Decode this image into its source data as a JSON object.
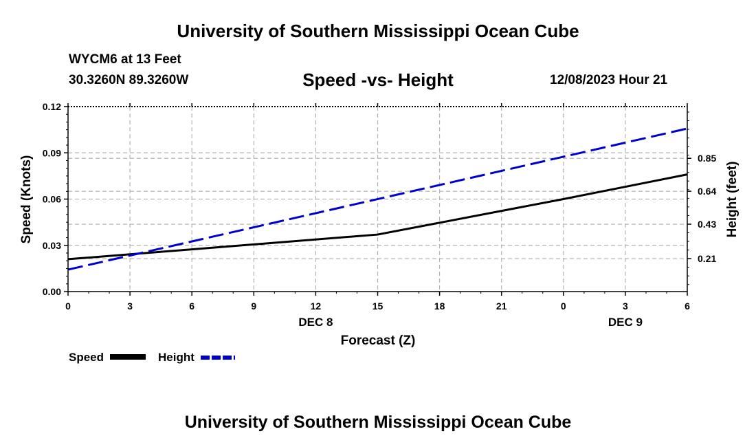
{
  "page": {
    "title_top": "University of Southern Mississippi Ocean Cube",
    "title_bottom": "University of Southern Mississippi Ocean Cube",
    "station_line": "WYCM6 at 13 Feet",
    "coords_line": "30.3260N  89.3260W",
    "timestamp": "12/08/2023 Hour 21"
  },
  "legend": {
    "speed_label": "Speed",
    "height_label": "Height"
  },
  "colors": {
    "speed": "#000000",
    "height": "#0000cc",
    "grid": "#b4b4b4"
  },
  "chart_data": {
    "type": "line",
    "title": "Speed -vs- Height",
    "xlabel": "Forecast (Z)",
    "ylabel": "Speed (Knots)",
    "y2label": "Height (feet)",
    "x": [
      0,
      3,
      6,
      9,
      12,
      15,
      18,
      21,
      24,
      27,
      30
    ],
    "x_tick_labels": [
      "0",
      "3",
      "6",
      "9",
      "12",
      "15",
      "18",
      "21",
      "0",
      "3",
      "6"
    ],
    "date_labels": [
      {
        "x": 12,
        "text": "DEC 8"
      },
      {
        "x": 27,
        "text": "DEC 9"
      }
    ],
    "xlim": [
      0,
      30
    ],
    "ylim": [
      0,
      0.12
    ],
    "y_ticks": [
      0.0,
      0.03,
      0.06,
      0.09,
      0.12
    ],
    "y_tick_labels": [
      "0.00",
      "0.03",
      "0.06",
      "0.09",
      "0.12"
    ],
    "y2lim": [
      0.0,
      1.18
    ],
    "y2_ticks": [
      0.21,
      0.43,
      0.64,
      0.85
    ],
    "y2_tick_labels": [
      "0.21",
      "0.43",
      "0.64",
      "0.85"
    ],
    "grid": true,
    "series": [
      {
        "name": "Speed",
        "axis": "left",
        "style": "solid",
        "x": [
          0,
          15,
          24,
          30
        ],
        "values": [
          0.021,
          0.037,
          0.06,
          0.076
        ]
      },
      {
        "name": "Height",
        "axis": "right",
        "style": "dashed",
        "x": [
          0,
          30
        ],
        "values": [
          0.14,
          1.04
        ]
      }
    ]
  }
}
